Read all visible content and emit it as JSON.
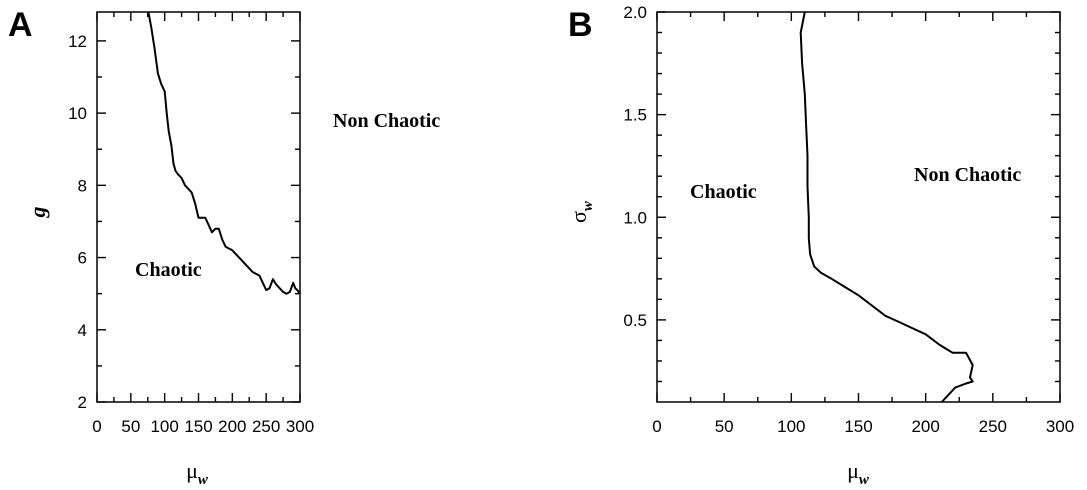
{
  "chart_data": [
    {
      "type": "line",
      "panel_letter": "A",
      "xlabel": "μ",
      "xlabel_sub": "w",
      "ylabel": "g",
      "xlim": [
        0,
        300
      ],
      "ylim": [
        2,
        12.8
      ],
      "x_ticks": [
        "0",
        "50",
        "100",
        "150",
        "200",
        "250",
        "300"
      ],
      "y_ticks": [
        "2",
        "4",
        "6",
        "8",
        "10",
        "12"
      ],
      "x_tick_values": [
        0,
        50,
        100,
        150,
        200,
        250,
        300
      ],
      "y_tick_values": [
        2,
        4,
        6,
        8,
        10,
        12
      ],
      "regions": [
        "Non Chaotic",
        "Chaotic"
      ],
      "series": [
        {
          "x": [
            76,
            80,
            85,
            90,
            95,
            100,
            103,
            106,
            110,
            113,
            116,
            120,
            125,
            130,
            135,
            140,
            145,
            150,
            160,
            165,
            170,
            175,
            180,
            185,
            190,
            200,
            210,
            220,
            230,
            240,
            245,
            250,
            255,
            260,
            265,
            270,
            275,
            280,
            285,
            290,
            293,
            296,
            300
          ],
          "y": [
            12.8,
            12.4,
            11.8,
            11.1,
            10.8,
            10.6,
            10.0,
            9.5,
            9.1,
            8.6,
            8.4,
            8.3,
            8.2,
            8.0,
            7.9,
            7.8,
            7.5,
            7.1,
            7.1,
            6.9,
            6.7,
            6.8,
            6.8,
            6.5,
            6.3,
            6.2,
            6.0,
            5.8,
            5.6,
            5.5,
            5.3,
            5.1,
            5.15,
            5.4,
            5.25,
            5.15,
            5.05,
            5.0,
            5.05,
            5.3,
            5.15,
            5.1,
            5.0
          ]
        }
      ]
    },
    {
      "type": "line",
      "panel_letter": "B",
      "xlabel": "μ",
      "xlabel_sub": "w",
      "ylabel": "σ",
      "ylabel_sub": "w",
      "xlim": [
        0,
        300
      ],
      "ylim": [
        0.1,
        2.0
      ],
      "x_ticks": [
        "0",
        "50",
        "100",
        "150",
        "200",
        "250",
        "300"
      ],
      "y_ticks": [
        "0.5",
        "1.0",
        "1.5",
        "2.0"
      ],
      "x_tick_values": [
        0,
        50,
        100,
        150,
        200,
        250,
        300
      ],
      "y_tick_values": [
        0.5,
        1.0,
        1.5,
        2.0
      ],
      "regions": [
        "Chaotic",
        "Non Chaotic"
      ],
      "series": [
        {
          "x": [
            110,
            107,
            108,
            110,
            111,
            112,
            112,
            113,
            113,
            114,
            117,
            122,
            130,
            140,
            150,
            160,
            170,
            180,
            190,
            200,
            210,
            215,
            220,
            225,
            230,
            235,
            233,
            235,
            230,
            222,
            212
          ],
          "y": [
            2.0,
            1.9,
            1.75,
            1.6,
            1.45,
            1.3,
            1.15,
            1.0,
            0.9,
            0.82,
            0.76,
            0.73,
            0.7,
            0.66,
            0.62,
            0.57,
            0.52,
            0.49,
            0.46,
            0.43,
            0.38,
            0.36,
            0.34,
            0.34,
            0.34,
            0.28,
            0.22,
            0.2,
            0.19,
            0.17,
            0.1
          ]
        }
      ]
    }
  ]
}
